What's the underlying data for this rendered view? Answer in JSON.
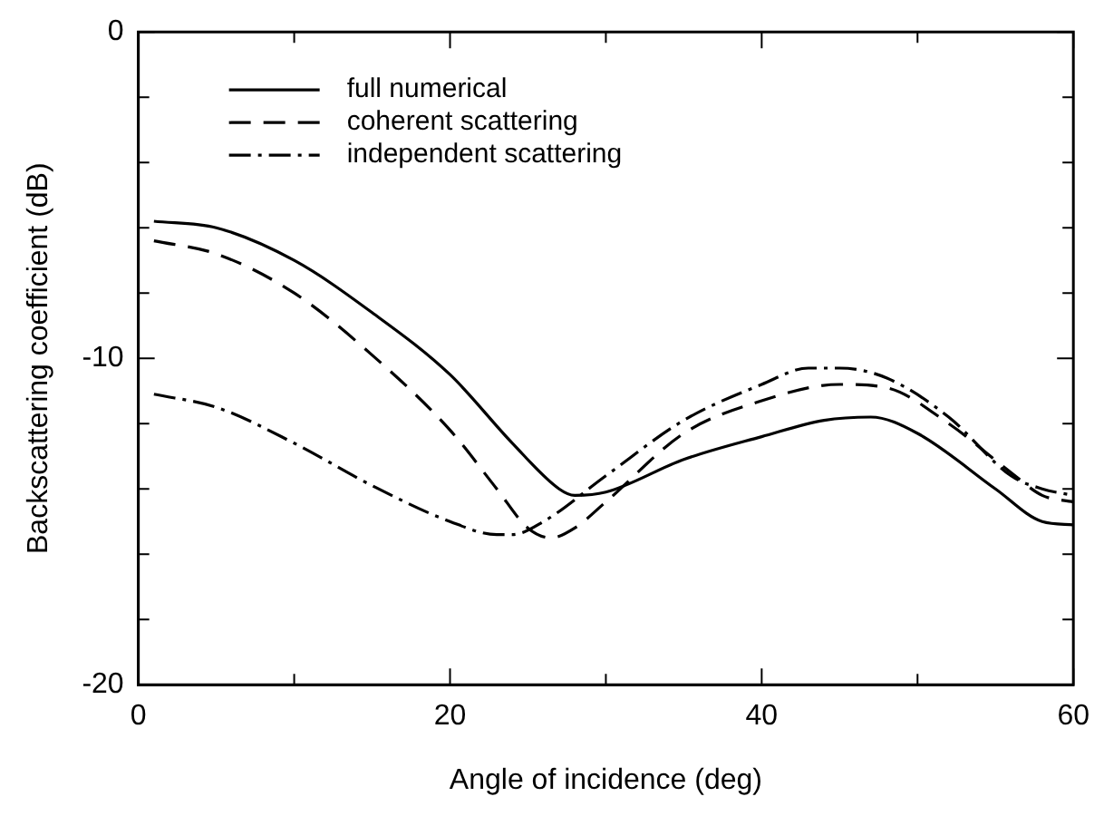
{
  "chart_data": {
    "type": "line",
    "xlabel": "Angle of incidence (deg)",
    "ylabel": "Backscattering coefficient (dB)",
    "xlim": [
      0,
      60
    ],
    "ylim": [
      -20,
      0
    ],
    "xticks": [
      0,
      {
        "value": 10,
        "label": null
      },
      20,
      {
        "value": 30,
        "label": null
      },
      40,
      {
        "value": 50,
        "label": null
      },
      60
    ],
    "yticks": [
      -20,
      {
        "value": -18,
        "label": null
      },
      {
        "value": -16,
        "label": null
      },
      {
        "value": -14,
        "label": null
      },
      {
        "value": -12,
        "label": null
      },
      -10,
      {
        "value": -8,
        "label": null
      },
      {
        "value": -6,
        "label": null
      },
      {
        "value": -4,
        "label": null
      },
      {
        "value": -2,
        "label": null
      },
      0
    ],
    "grid": false,
    "legend": "top left",
    "marker": "none",
    "series": [
      {
        "name": "full numerical",
        "color": "#000000",
        "line_style": "solid",
        "x": [
          1,
          5,
          10,
          15,
          20,
          24,
          27,
          28,
          30,
          35,
          40,
          44,
          47,
          50,
          55,
          58,
          60
        ],
        "values": [
          -5.8,
          -6.0,
          -7.0,
          -8.6,
          -10.5,
          -12.6,
          -14.0,
          -14.2,
          -14.1,
          -13.1,
          -12.4,
          -11.9,
          -11.8,
          -12.3,
          -14.0,
          -15.0,
          -15.1
        ]
      },
      {
        "name": "coherent scattering",
        "color": "#000000",
        "line_style": "dashed",
        "x": [
          1,
          5,
          10,
          15,
          20,
          23,
          25,
          26.5,
          28,
          30,
          35,
          40,
          45,
          48,
          52,
          56,
          58,
          60
        ],
        "values": [
          -6.4,
          -6.8,
          -8.0,
          -9.9,
          -12.2,
          -14.0,
          -15.2,
          -15.5,
          -15.2,
          -14.4,
          -12.3,
          -11.3,
          -10.8,
          -10.9,
          -12.0,
          -13.5,
          -14.2,
          -14.4
        ]
      },
      {
        "name": "independent scattering",
        "color": "#000000",
        "line_style": "dashdot",
        "x": [
          1,
          5,
          10,
          15,
          20,
          23,
          24,
          26,
          30,
          35,
          40,
          43,
          45,
          48,
          52,
          56,
          58,
          60
        ],
        "values": [
          -11.1,
          -11.5,
          -12.6,
          -13.9,
          -15.0,
          -15.4,
          -15.4,
          -15.0,
          -13.6,
          -11.9,
          -10.8,
          -10.3,
          -10.3,
          -10.6,
          -11.8,
          -13.6,
          -14.0,
          -14.2
        ]
      }
    ]
  }
}
